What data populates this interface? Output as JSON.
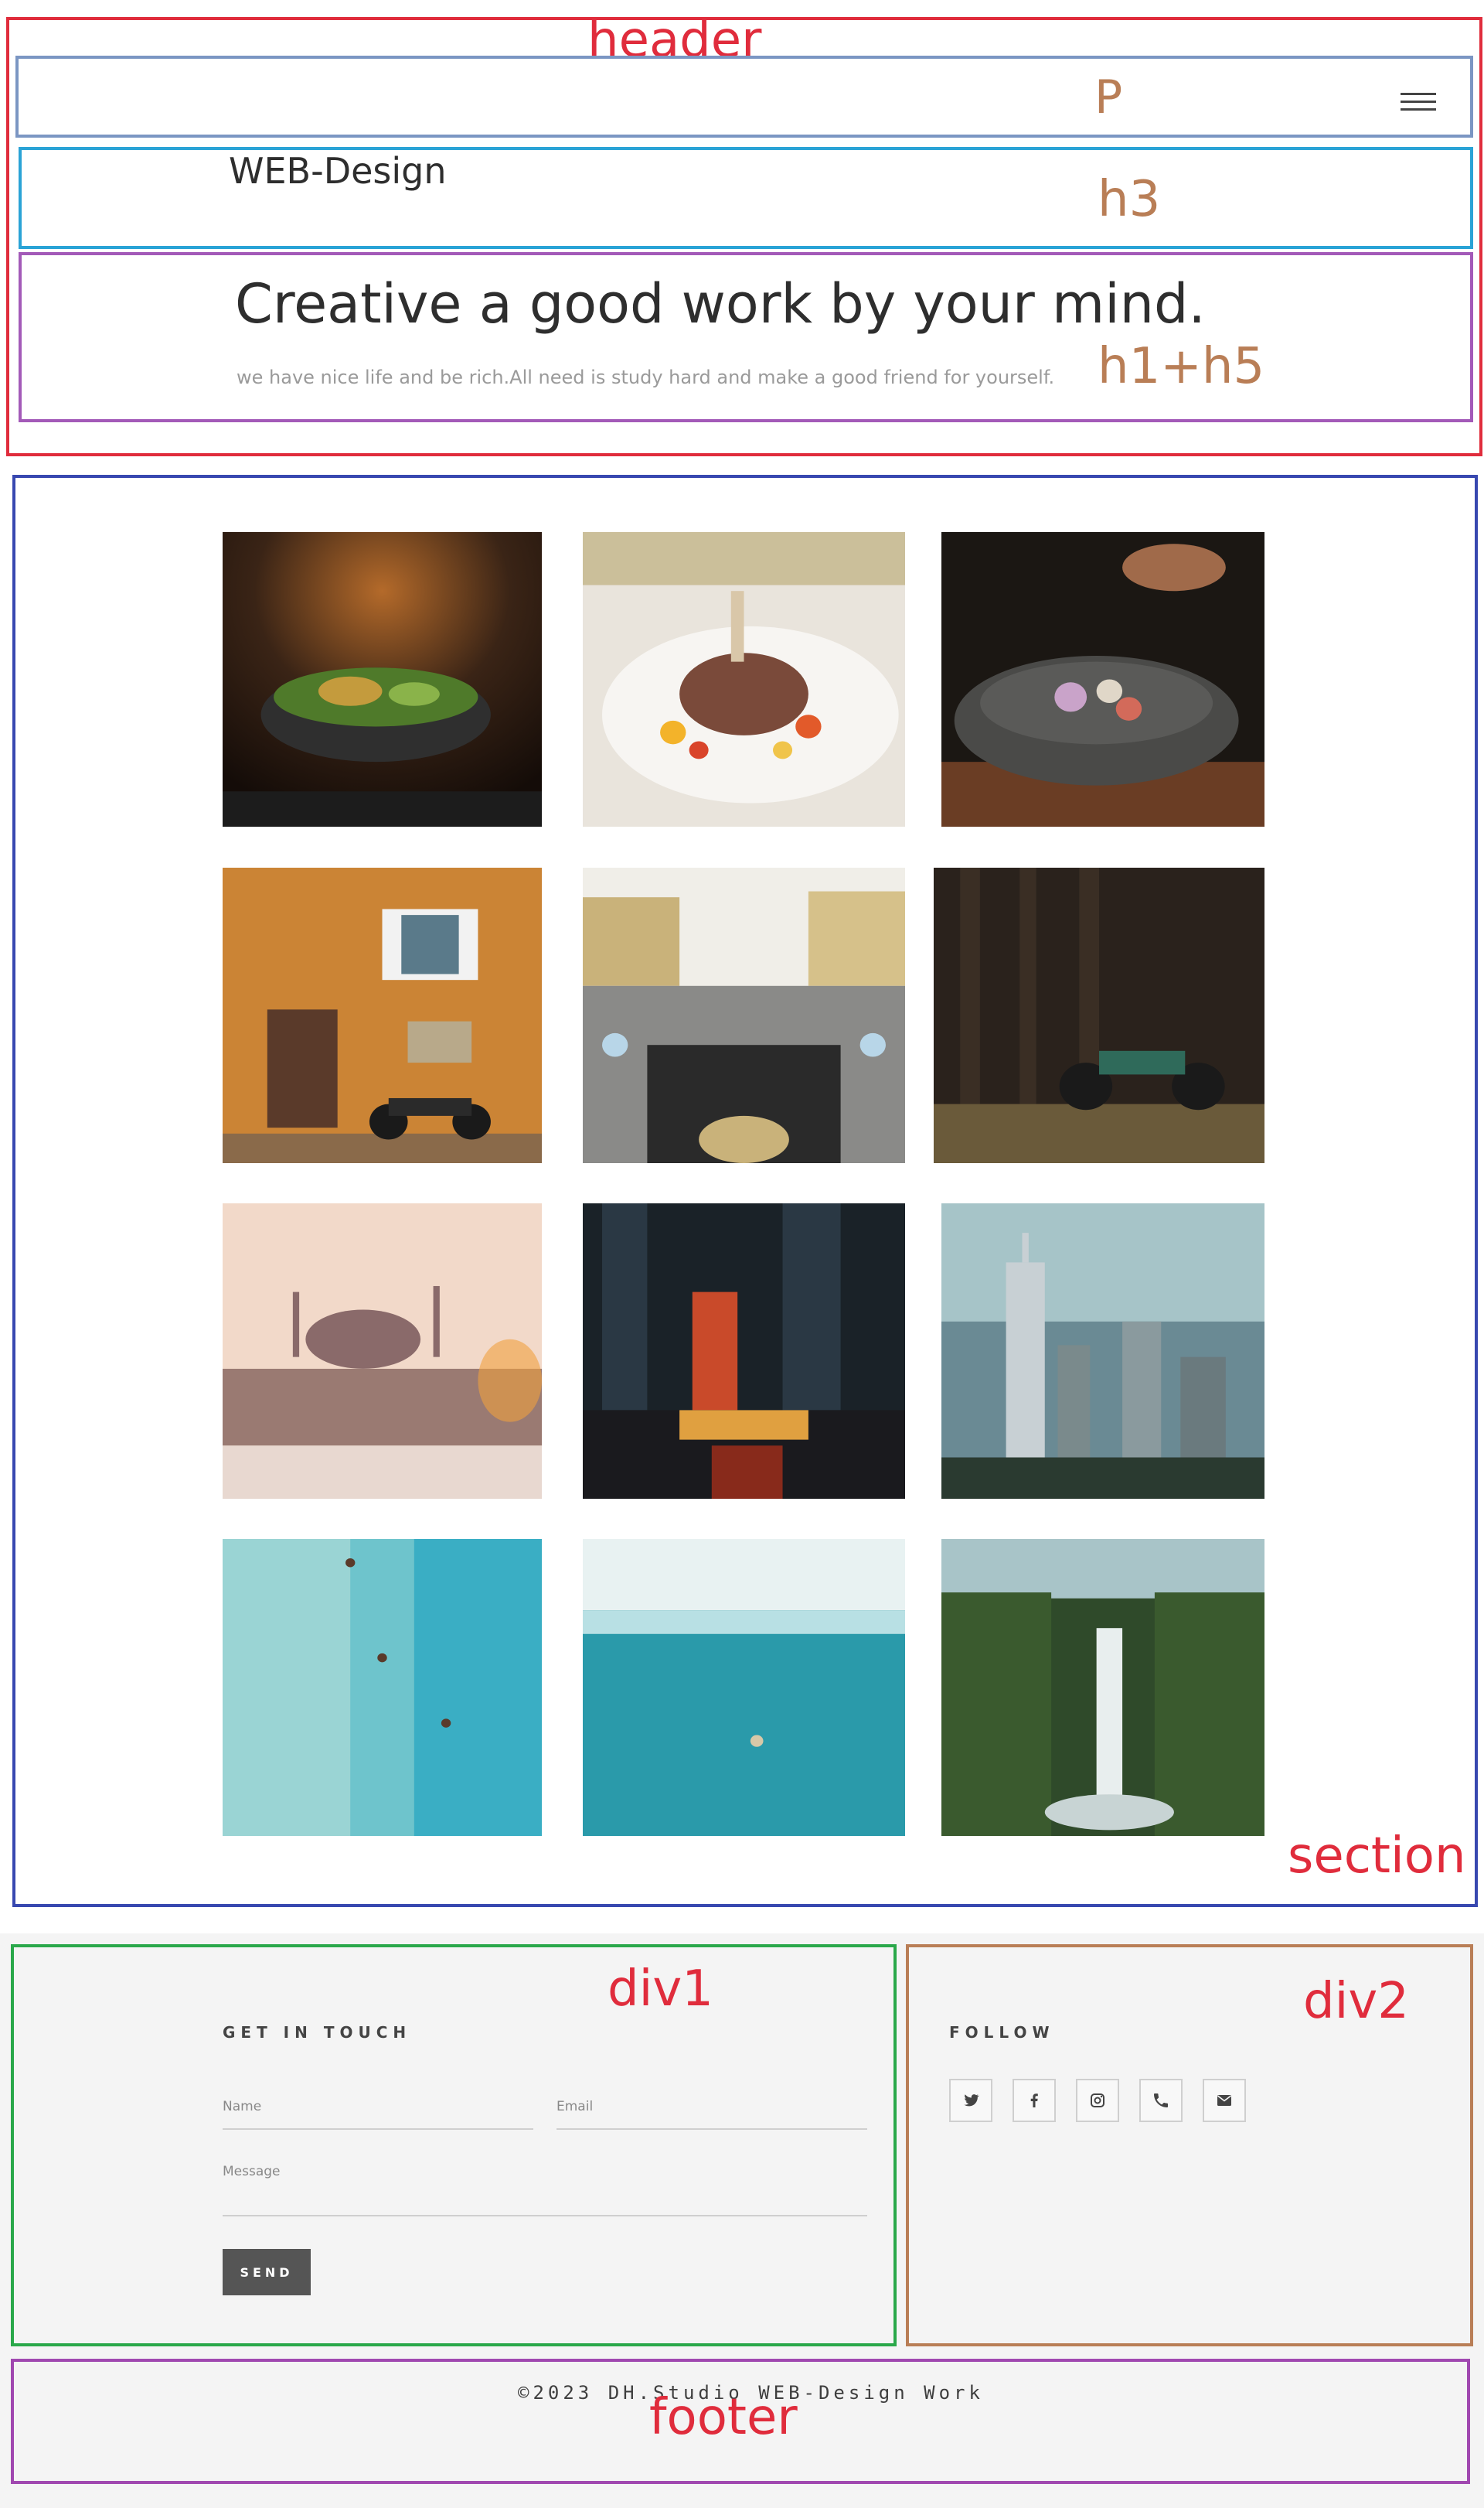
{
  "annotations": {
    "header": "header",
    "p": "P",
    "h3": "h3",
    "h1_h5": "h1+h5",
    "section": "section",
    "div1": "div1",
    "div2": "div2",
    "footer": "footer"
  },
  "colors": {
    "header_box": "#e02c3c",
    "p_box": "#7b96c3",
    "h3_box": "#2aa3d6",
    "h1_box": "#a35ab8",
    "section_box": "#3848b0",
    "div1_box": "#2aa84a",
    "div2_box": "#b97e56",
    "footer_box": "#a048b0",
    "annotation_red": "#e02c3c",
    "annotation_brown": "#b97e56",
    "text_dark": "#2e2e2e",
    "send_button": "#555555",
    "footer_bg": "#f4f4f4"
  },
  "header": {
    "menu_icon": "hamburger-menu-icon",
    "site_title": "WEB-Design",
    "headline": "Creative a good work by your mind.",
    "subline": "we have nice life and be rich.All need is study hard and make a good friend for yourself."
  },
  "gallery": {
    "images": [
      "salad-bowl-photo",
      "lamb-chop-plate-photo",
      "stone-bowl-dish-photo",
      "orange-wall-motorcycle-photo",
      "motorcycle-handlebar-street-photo",
      "motorcycle-dark-forest-photo",
      "istanbul-mosque-photo",
      "city-night-street-photo",
      "skyline-skyscrapers-photo",
      "beach-swimmers-aerial-photo",
      "ocean-waves-aerial-photo",
      "jungle-waterfall-photo"
    ]
  },
  "contact": {
    "heading": "GET IN TOUCH",
    "name_placeholder": "Name",
    "email_placeholder": "Email",
    "message_placeholder": "Message",
    "send_label": "SEND"
  },
  "follow": {
    "heading": "FOLLOW",
    "icons": [
      "twitter-icon",
      "facebook-icon",
      "instagram-icon",
      "phone-icon",
      "mail-icon"
    ]
  },
  "footer": {
    "copyright": "©2023 DH.Studio WEB-Design Work"
  }
}
